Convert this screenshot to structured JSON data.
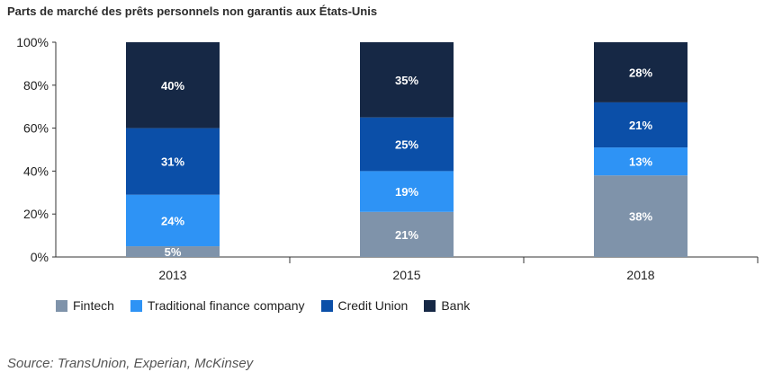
{
  "title": "Parts de marché des prêts personnels non garantis aux États-Unis",
  "source": "Source: TransUnion, Experian, McKinsey",
  "legend": [
    {
      "label": "Fintech",
      "color": "#7f93aa"
    },
    {
      "label": "Traditional finance company",
      "color": "#2e93f5"
    },
    {
      "label": "Credit Union",
      "color": "#0b4fa8"
    },
    {
      "label": "Bank",
      "color": "#162845"
    }
  ],
  "chart_data": {
    "type": "bar",
    "stacked": true,
    "categories": [
      "2013",
      "2015",
      "2018"
    ],
    "series": [
      {
        "name": "Fintech",
        "values": [
          5,
          21,
          38
        ],
        "labels": [
          "5%",
          "21%",
          "38%"
        ],
        "color": "#7f93aa"
      },
      {
        "name": "Traditional finance company",
        "values": [
          24,
          19,
          13
        ],
        "labels": [
          "24%",
          "19%",
          "13%"
        ],
        "color": "#2e93f5"
      },
      {
        "name": "Credit Union",
        "values": [
          31,
          25,
          21
        ],
        "labels": [
          "31%",
          "25%",
          "21%"
        ],
        "color": "#0b4fa8"
      },
      {
        "name": "Bank",
        "values": [
          40,
          35,
          28
        ],
        "labels": [
          "40%",
          "35%",
          "28%"
        ],
        "color": "#162845"
      }
    ],
    "ylim": [
      0,
      100
    ],
    "yticks": [
      "0%",
      "20%",
      "40%",
      "60%",
      "80%",
      "100%"
    ],
    "grid": false,
    "legend_position": "bottom-left"
  }
}
